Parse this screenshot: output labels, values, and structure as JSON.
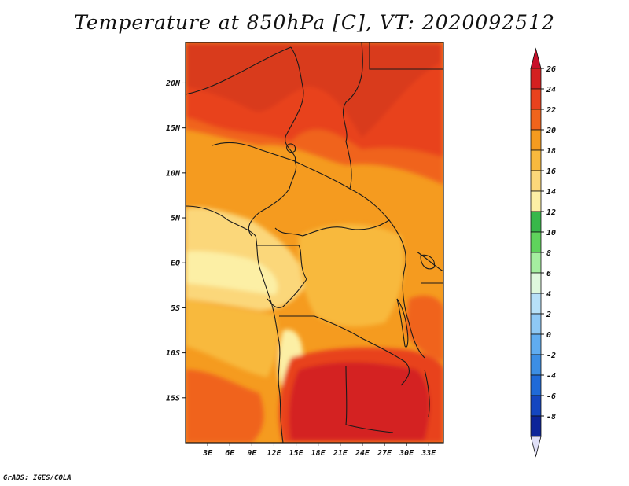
{
  "title": "Temperature at 850hPa [C], VT: 2020092512",
  "credit": "GrADS: IGES/COLA",
  "map": {
    "lon_range": [
      0,
      35
    ],
    "lat_range": [
      -20,
      24.5
    ],
    "lon_ticks": [
      {
        "value": 3,
        "label": "3E"
      },
      {
        "value": 6,
        "label": "6E"
      },
      {
        "value": 9,
        "label": "9E"
      },
      {
        "value": 12,
        "label": "12E"
      },
      {
        "value": 15,
        "label": "15E"
      },
      {
        "value": 18,
        "label": "18E"
      },
      {
        "value": 21,
        "label": "21E"
      },
      {
        "value": 24,
        "label": "24E"
      },
      {
        "value": 27,
        "label": "27E"
      },
      {
        "value": 30,
        "label": "30E"
      },
      {
        "value": 33,
        "label": "33E"
      }
    ],
    "lat_ticks": [
      {
        "value": 20,
        "label": "20N"
      },
      {
        "value": 15,
        "label": "15N"
      },
      {
        "value": 10,
        "label": "10N"
      },
      {
        "value": 5,
        "label": "5N"
      },
      {
        "value": 0,
        "label": "EQ"
      },
      {
        "value": -5,
        "label": "5S"
      },
      {
        "value": -10,
        "label": "10S"
      },
      {
        "value": -15,
        "label": "15S"
      }
    ]
  },
  "colorbar": {
    "levels": [
      {
        "label": "26",
        "color": "#d42020"
      },
      {
        "label": "24",
        "color": "#e8421e"
      },
      {
        "label": "22",
        "color": "#f0641c"
      },
      {
        "label": "20",
        "color": "#f59b1f"
      },
      {
        "label": "18",
        "color": "#f8b93e"
      },
      {
        "label": "16",
        "color": "#fbd77a"
      },
      {
        "label": "14",
        "color": "#fcefa5"
      },
      {
        "label": "12",
        "color": "#38b84a"
      },
      {
        "label": "10",
        "color": "#5fd35c"
      },
      {
        "label": "8",
        "color": "#a5eea0"
      },
      {
        "label": "6",
        "color": "#dff8dd"
      },
      {
        "label": "4",
        "color": "#b7e0f8"
      },
      {
        "label": "2",
        "color": "#8ec8f5"
      },
      {
        "label": "0",
        "color": "#60acf0"
      },
      {
        "label": "-2",
        "color": "#3c8ee4"
      },
      {
        "label": "-4",
        "color": "#1f6ad8"
      },
      {
        "label": "-6",
        "color": "#1446c0"
      },
      {
        "label": "-8",
        "color": "#0c2499"
      }
    ],
    "top_color": "#c8102a",
    "bottom_color": "#e0e0f8"
  }
}
